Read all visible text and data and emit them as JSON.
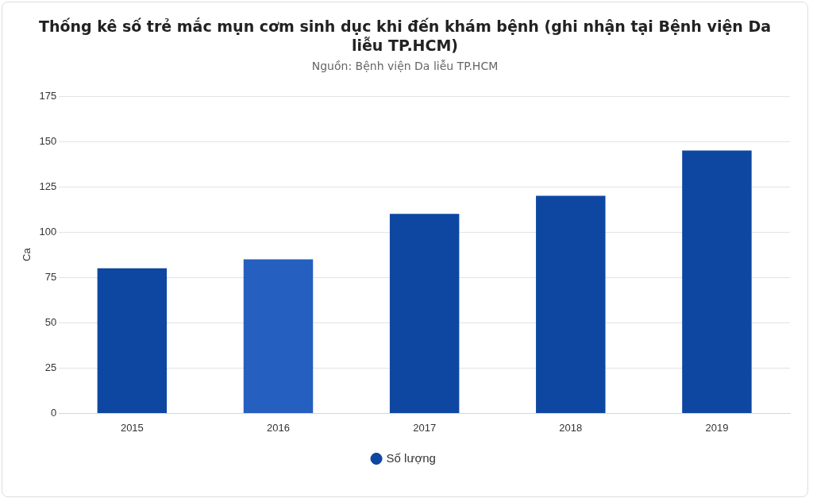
{
  "chart_data": {
    "type": "bar",
    "title": "Thống kê số trẻ mắc mụn cơm sinh dục khi đến khám bệnh (ghi nhận tại Bệnh viện Da liễu TP.HCM)",
    "subtitle": "Nguồn: Bệnh viện Da liễu TP.HCM",
    "ylabel": "Ca",
    "categories": [
      "2015",
      "2016",
      "2017",
      "2018",
      "2019"
    ],
    "series": [
      {
        "name": "Số lượng",
        "color": "#0d47a1",
        "colors": [
          "#0d47a1",
          "#255fbf",
          "#0d47a1",
          "#0d47a1",
          "#0d47a1"
        ],
        "values": [
          80,
          85,
          110,
          120,
          145
        ]
      }
    ],
    "ylim": [
      0,
      175
    ],
    "yticks": [
      0,
      25,
      50,
      75,
      100,
      125,
      150,
      175
    ],
    "grid": "y",
    "legend": "bottom"
  }
}
